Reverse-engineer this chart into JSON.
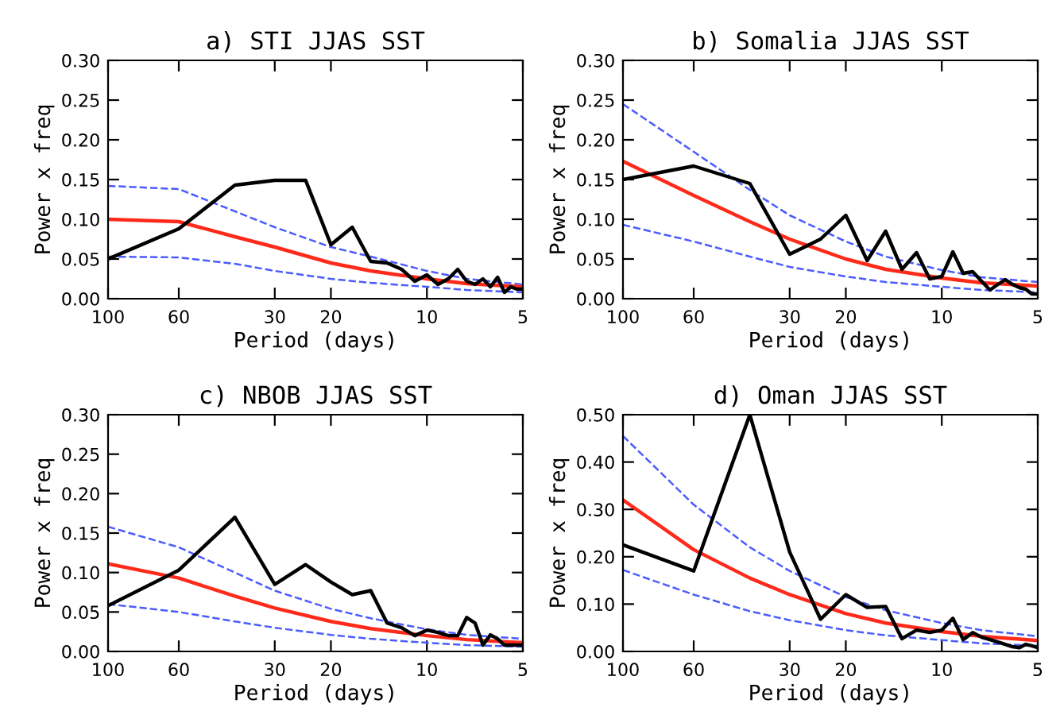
{
  "chart_data": [
    {
      "type": "line",
      "title": "a) STI JJAS SST",
      "xlabel": "Period (days)",
      "ylabel": "Power x freq",
      "log": "x",
      "xlim": [
        100,
        5
      ],
      "xticks": [
        100,
        60,
        30,
        20,
        10,
        5
      ],
      "ylim": [
        0,
        0.3
      ],
      "yticks": [
        {
          "value": 0,
          "label": "0.00"
        },
        {
          "value": 0.05,
          "label": "0.05"
        },
        {
          "value": 0.1,
          "label": "0.10"
        },
        {
          "value": 0.15,
          "label": "0.15"
        },
        {
          "value": 0.2,
          "label": "0.20"
        },
        {
          "value": 0.25,
          "label": "0.25"
        },
        {
          "value": 0.3,
          "label": "0.30"
        }
      ],
      "grid": false,
      "series": [
        {
          "color": "#4a5cff",
          "line_style": "dashed",
          "x": [
            100,
            60,
            40,
            30,
            20,
            15,
            10,
            7.5,
            5
          ],
          "values": [
            0.142,
            0.138,
            0.11,
            0.09,
            0.065,
            0.053,
            0.035,
            0.025,
            0.018
          ]
        },
        {
          "color": "#4a5cff",
          "line_style": "dashed",
          "x": [
            100,
            60,
            40,
            30,
            20,
            15,
            10,
            7.5,
            5
          ],
          "values": [
            0.053,
            0.052,
            0.044,
            0.035,
            0.025,
            0.02,
            0.015,
            0.011,
            0.008
          ]
        },
        {
          "color": "#ff2a1a",
          "line_style": "solid",
          "x": [
            100,
            60,
            40,
            30,
            20,
            15,
            10,
            7.5,
            5
          ],
          "values": [
            0.1,
            0.097,
            0.078,
            0.065,
            0.045,
            0.035,
            0.025,
            0.019,
            0.015
          ]
        },
        {
          "color": "#000000",
          "line_style": "solid",
          "x": [
            100,
            60,
            40,
            30,
            24,
            20,
            17.14,
            15,
            13.33,
            12,
            10.91,
            10,
            9.23,
            8.57,
            8,
            7.5,
            7.06,
            6.67,
            6.32,
            6,
            5.71,
            5.45,
            5.22,
            5
          ],
          "values": [
            0.05,
            0.088,
            0.143,
            0.149,
            0.149,
            0.068,
            0.09,
            0.047,
            0.045,
            0.037,
            0.022,
            0.03,
            0.018,
            0.025,
            0.037,
            0.022,
            0.018,
            0.025,
            0.015,
            0.027,
            0.008,
            0.015,
            0.012,
            0.012
          ]
        }
      ]
    },
    {
      "type": "line",
      "title": "b) Somalia JJAS SST",
      "xlabel": "Period (days)",
      "ylabel": "Power x freq",
      "log": "x",
      "xlim": [
        100,
        5
      ],
      "xticks": [
        100,
        60,
        30,
        20,
        10,
        5
      ],
      "ylim": [
        0,
        0.3
      ],
      "yticks": [
        {
          "value": 0,
          "label": "0.00"
        },
        {
          "value": 0.05,
          "label": "0.05"
        },
        {
          "value": 0.1,
          "label": "0.10"
        },
        {
          "value": 0.15,
          "label": "0.15"
        },
        {
          "value": 0.2,
          "label": "0.20"
        },
        {
          "value": 0.25,
          "label": "0.25"
        },
        {
          "value": 0.3,
          "label": "0.30"
        }
      ],
      "grid": false,
      "series": [
        {
          "color": "#4a5cff",
          "line_style": "dashed",
          "x": [
            100,
            60,
            40,
            30,
            20,
            15,
            10,
            7.5,
            5
          ],
          "values": [
            0.245,
            0.185,
            0.137,
            0.105,
            0.072,
            0.053,
            0.036,
            0.027,
            0.021
          ]
        },
        {
          "color": "#4a5cff",
          "line_style": "dashed",
          "x": [
            100,
            60,
            40,
            30,
            20,
            15,
            10,
            7.5,
            5
          ],
          "values": [
            0.093,
            0.072,
            0.053,
            0.04,
            0.028,
            0.021,
            0.015,
            0.011,
            0.008
          ]
        },
        {
          "color": "#ff2a1a",
          "line_style": "solid",
          "x": [
            100,
            60,
            40,
            30,
            20,
            15,
            10,
            7.5,
            5
          ],
          "values": [
            0.173,
            0.13,
            0.097,
            0.075,
            0.05,
            0.037,
            0.026,
            0.02,
            0.016
          ]
        },
        {
          "color": "#000000",
          "line_style": "solid",
          "x": [
            100,
            60,
            40,
            30,
            24,
            20,
            17.14,
            15,
            13.33,
            12,
            10.91,
            10,
            9.23,
            8.57,
            8,
            7.5,
            7.06,
            6.67,
            6.32,
            6,
            5.71,
            5.45,
            5.22,
            5
          ],
          "values": [
            0.15,
            0.167,
            0.145,
            0.056,
            0.075,
            0.105,
            0.048,
            0.085,
            0.037,
            0.058,
            0.025,
            0.028,
            0.059,
            0.032,
            0.034,
            0.022,
            0.011,
            0.018,
            0.024,
            0.018,
            0.014,
            0.012,
            0.006,
            0.006
          ]
        }
      ]
    },
    {
      "type": "line",
      "title": "c) NBOB JJAS SST",
      "xlabel": "Period (days)",
      "ylabel": "Power x freq",
      "log": "x",
      "xlim": [
        100,
        5
      ],
      "xticks": [
        100,
        60,
        30,
        20,
        10,
        5
      ],
      "ylim": [
        0,
        0.3
      ],
      "yticks": [
        {
          "value": 0,
          "label": "0.00"
        },
        {
          "value": 0.05,
          "label": "0.05"
        },
        {
          "value": 0.1,
          "label": "0.10"
        },
        {
          "value": 0.15,
          "label": "0.15"
        },
        {
          "value": 0.2,
          "label": "0.20"
        },
        {
          "value": 0.25,
          "label": "0.25"
        },
        {
          "value": 0.3,
          "label": "0.30"
        }
      ],
      "grid": false,
      "series": [
        {
          "color": "#4a5cff",
          "line_style": "dashed",
          "x": [
            100,
            60,
            40,
            30,
            20,
            15,
            10,
            7.5,
            5
          ],
          "values": [
            0.158,
            0.132,
            0.1,
            0.077,
            0.054,
            0.042,
            0.028,
            0.021,
            0.016
          ]
        },
        {
          "color": "#4a5cff",
          "line_style": "dashed",
          "x": [
            100,
            60,
            40,
            30,
            20,
            15,
            10,
            7.5,
            5
          ],
          "values": [
            0.06,
            0.05,
            0.038,
            0.03,
            0.021,
            0.016,
            0.011,
            0.008,
            0.006
          ]
        },
        {
          "color": "#ff2a1a",
          "line_style": "solid",
          "x": [
            100,
            60,
            40,
            30,
            20,
            15,
            10,
            7.5,
            5
          ],
          "values": [
            0.111,
            0.093,
            0.07,
            0.055,
            0.038,
            0.029,
            0.02,
            0.015,
            0.011
          ]
        },
        {
          "color": "#000000",
          "line_style": "solid",
          "x": [
            100,
            60,
            40,
            30,
            24,
            20,
            17.14,
            15,
            13.33,
            12,
            10.91,
            10,
            9.23,
            8.57,
            8,
            7.5,
            7.06,
            6.67,
            6.32,
            6,
            5.71,
            5.45,
            5.22,
            5
          ],
          "values": [
            0.058,
            0.103,
            0.17,
            0.085,
            0.11,
            0.088,
            0.072,
            0.077,
            0.036,
            0.03,
            0.02,
            0.027,
            0.024,
            0.02,
            0.02,
            0.043,
            0.036,
            0.008,
            0.021,
            0.016,
            0.008,
            0.008,
            0.008,
            0.008
          ]
        }
      ]
    },
    {
      "type": "line",
      "title": "d) Oman JJAS SST",
      "xlabel": "Period (days)",
      "ylabel": "Power x freq",
      "log": "x",
      "xlim": [
        100,
        5
      ],
      "xticks": [
        100,
        60,
        30,
        20,
        10,
        5
      ],
      "ylim": [
        0,
        0.5
      ],
      "yticks": [
        {
          "value": 0,
          "label": "0.00"
        },
        {
          "value": 0.1,
          "label": "0.10"
        },
        {
          "value": 0.2,
          "label": "0.20"
        },
        {
          "value": 0.3,
          "label": "0.30"
        },
        {
          "value": 0.4,
          "label": "0.40"
        },
        {
          "value": 0.5,
          "label": "0.50"
        }
      ],
      "grid": false,
      "series": [
        {
          "color": "#4a5cff",
          "line_style": "dashed",
          "x": [
            100,
            60,
            40,
            30,
            20,
            15,
            10,
            7.5,
            5
          ],
          "values": [
            0.455,
            0.31,
            0.22,
            0.17,
            0.115,
            0.087,
            0.06,
            0.045,
            0.032
          ]
        },
        {
          "color": "#4a5cff",
          "line_style": "dashed",
          "x": [
            100,
            60,
            40,
            30,
            20,
            15,
            10,
            7.5,
            5
          ],
          "values": [
            0.172,
            0.12,
            0.085,
            0.066,
            0.045,
            0.034,
            0.024,
            0.017,
            0.012
          ]
        },
        {
          "color": "#ff2a1a",
          "line_style": "solid",
          "x": [
            100,
            60,
            40,
            30,
            20,
            15,
            10,
            7.5,
            5
          ],
          "values": [
            0.32,
            0.215,
            0.155,
            0.12,
            0.08,
            0.06,
            0.042,
            0.032,
            0.023
          ]
        },
        {
          "color": "#000000",
          "line_style": "solid",
          "x": [
            100,
            60,
            40,
            30,
            24,
            20,
            17.14,
            15,
            13.33,
            12,
            10.91,
            10,
            9.23,
            8.57,
            8,
            7.5,
            7.06,
            6.67,
            6.32,
            6,
            5.71,
            5.45,
            5.22,
            5
          ],
          "values": [
            0.225,
            0.17,
            0.5,
            0.21,
            0.068,
            0.12,
            0.093,
            0.095,
            0.027,
            0.045,
            0.04,
            0.045,
            0.07,
            0.025,
            0.04,
            0.03,
            0.025,
            0.02,
            0.015,
            0.01,
            0.008,
            0.015,
            0.012,
            0.008
          ]
        }
      ]
    }
  ]
}
